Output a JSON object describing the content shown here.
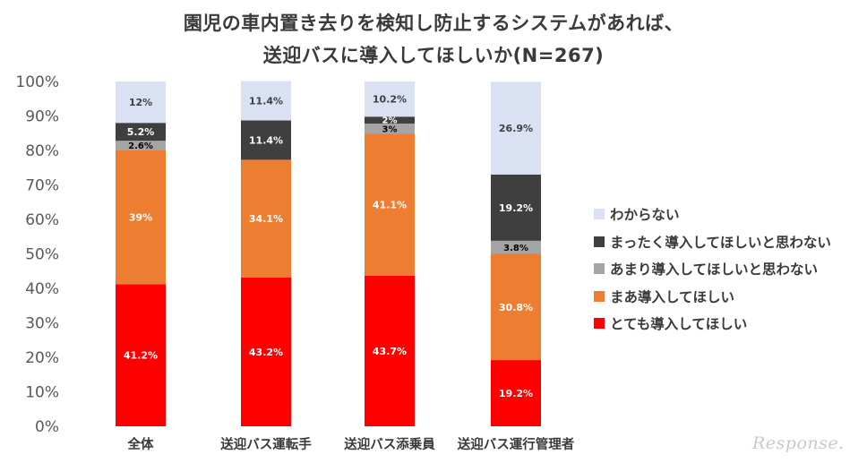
{
  "chart_data": {
    "type": "bar",
    "stacked": true,
    "title": "園児の車内置き去りを検知し防止するシステムがあれば、",
    "subtitle": "送迎バスに導入してほしいか(N=267)",
    "categories": [
      "全体",
      "送迎バス運転手",
      "送迎バス添乗員",
      "送迎バス運行管理者"
    ],
    "ylim": [
      0,
      100
    ],
    "yticks": [
      "0%",
      "10%",
      "20%",
      "30%",
      "40%",
      "50%",
      "60%",
      "70%",
      "80%",
      "90%",
      "100%"
    ],
    "grid": false,
    "legend_position": "right",
    "series": [
      {
        "name": "とても導入してほしい",
        "color": "#ff0000",
        "values": [
          41.2,
          43.2,
          43.7,
          19.2
        ],
        "labels": [
          "41.2%",
          "43.2%",
          "43.7%",
          "19.2%"
        ],
        "label_color": "#ffffff"
      },
      {
        "name": "まあ導入してほしい",
        "color": "#ed7d31",
        "values": [
          39,
          34.1,
          41.1,
          30.8
        ],
        "labels": [
          "39%",
          "34.1%",
          "41.1%",
          "30.8%"
        ],
        "label_color": "#ffffff"
      },
      {
        "name": "あまり導入してほしいと思わない",
        "color": "#a5a5a5",
        "values": [
          2.6,
          0,
          3,
          3.8
        ],
        "labels": [
          "2.6%",
          "",
          "3%",
          "3.8%"
        ],
        "label_color": "#000000"
      },
      {
        "name": "まったく導入してほしいと思わない",
        "color": "#3f3f3f",
        "values": [
          5.2,
          11.4,
          2,
          19.2
        ],
        "labels": [
          "5.2%",
          "11.4%",
          "2%",
          "19.2%"
        ],
        "label_color": "#ffffff"
      },
      {
        "name": "わからない",
        "color": "#dae1f3",
        "values": [
          12,
          11.4,
          10.2,
          26.9
        ],
        "labels": [
          "12%",
          "11.4%",
          "10.2%",
          "26.9%"
        ],
        "label_color": "#404040"
      }
    ]
  },
  "watermark": "Response."
}
